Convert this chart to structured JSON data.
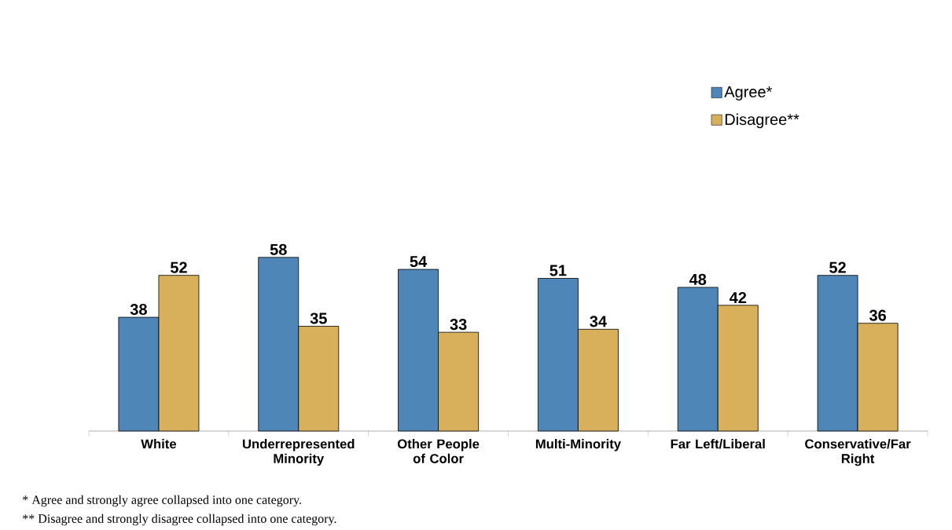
{
  "chart_data": {
    "type": "bar",
    "categories": [
      "White",
      "Underrepresented Minority",
      "Other People of Color",
      "Multi-Minority",
      "Far Left/Liberal",
      "Conservative/Far Right"
    ],
    "series": [
      {
        "name": "Agree*",
        "color": "#4f86b8",
        "values": [
          38,
          58,
          54,
          51,
          48,
          52
        ]
      },
      {
        "name": "Disagree**",
        "color": "#d8b05c",
        "values": [
          52,
          35,
          33,
          34,
          42,
          36
        ]
      }
    ],
    "data_labels": true,
    "legend": "top right",
    "annotations": [
      "* Agree and strongly agree collapsed into one category.",
      "** Disagree and strongly disagree collapsed into one category."
    ]
  }
}
